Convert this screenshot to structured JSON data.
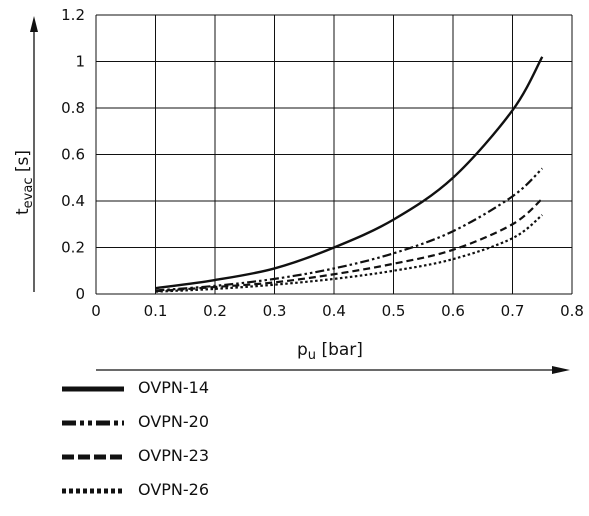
{
  "chart_data": {
    "type": "line",
    "xlabel_main": "p",
    "xlabel_sub": "u",
    "xlabel_unit": " [bar]",
    "ylabel_main": "t",
    "ylabel_sub": "evac",
    "ylabel_unit": " [s]",
    "xlim": [
      0,
      0.8
    ],
    "ylim": [
      0,
      1.2
    ],
    "x_ticks": [
      "0",
      "0.1",
      "0.2",
      "0.3",
      "0.4",
      "0.5",
      "0.6",
      "0.7",
      "0.8"
    ],
    "y_ticks": [
      "0",
      "0.2",
      "0.4",
      "0.6",
      "0.8",
      "1",
      "1.2"
    ],
    "grid": true,
    "legend_position": "bottom",
    "series": [
      {
        "name": "OVPN-14",
        "style": "solid",
        "x": [
          0.1,
          0.2,
          0.3,
          0.4,
          0.5,
          0.6,
          0.7,
          0.75
        ],
        "y": [
          0.025,
          0.06,
          0.11,
          0.2,
          0.32,
          0.5,
          0.79,
          1.02
        ]
      },
      {
        "name": "OVPN-20",
        "style": "dash-dot-dot",
        "x": [
          0.1,
          0.2,
          0.3,
          0.4,
          0.5,
          0.6,
          0.7,
          0.75
        ],
        "y": [
          0.015,
          0.035,
          0.065,
          0.11,
          0.175,
          0.27,
          0.42,
          0.54
        ]
      },
      {
        "name": "OVPN-23",
        "style": "dashed",
        "x": [
          0.1,
          0.2,
          0.3,
          0.4,
          0.5,
          0.6,
          0.7,
          0.75
        ],
        "y": [
          0.012,
          0.03,
          0.05,
          0.085,
          0.13,
          0.19,
          0.3,
          0.41
        ]
      },
      {
        "name": "OVPN-26",
        "style": "dotted",
        "x": [
          0.1,
          0.2,
          0.3,
          0.4,
          0.5,
          0.6,
          0.7,
          0.75
        ],
        "y": [
          0.01,
          0.022,
          0.04,
          0.065,
          0.1,
          0.15,
          0.24,
          0.34
        ]
      }
    ]
  }
}
